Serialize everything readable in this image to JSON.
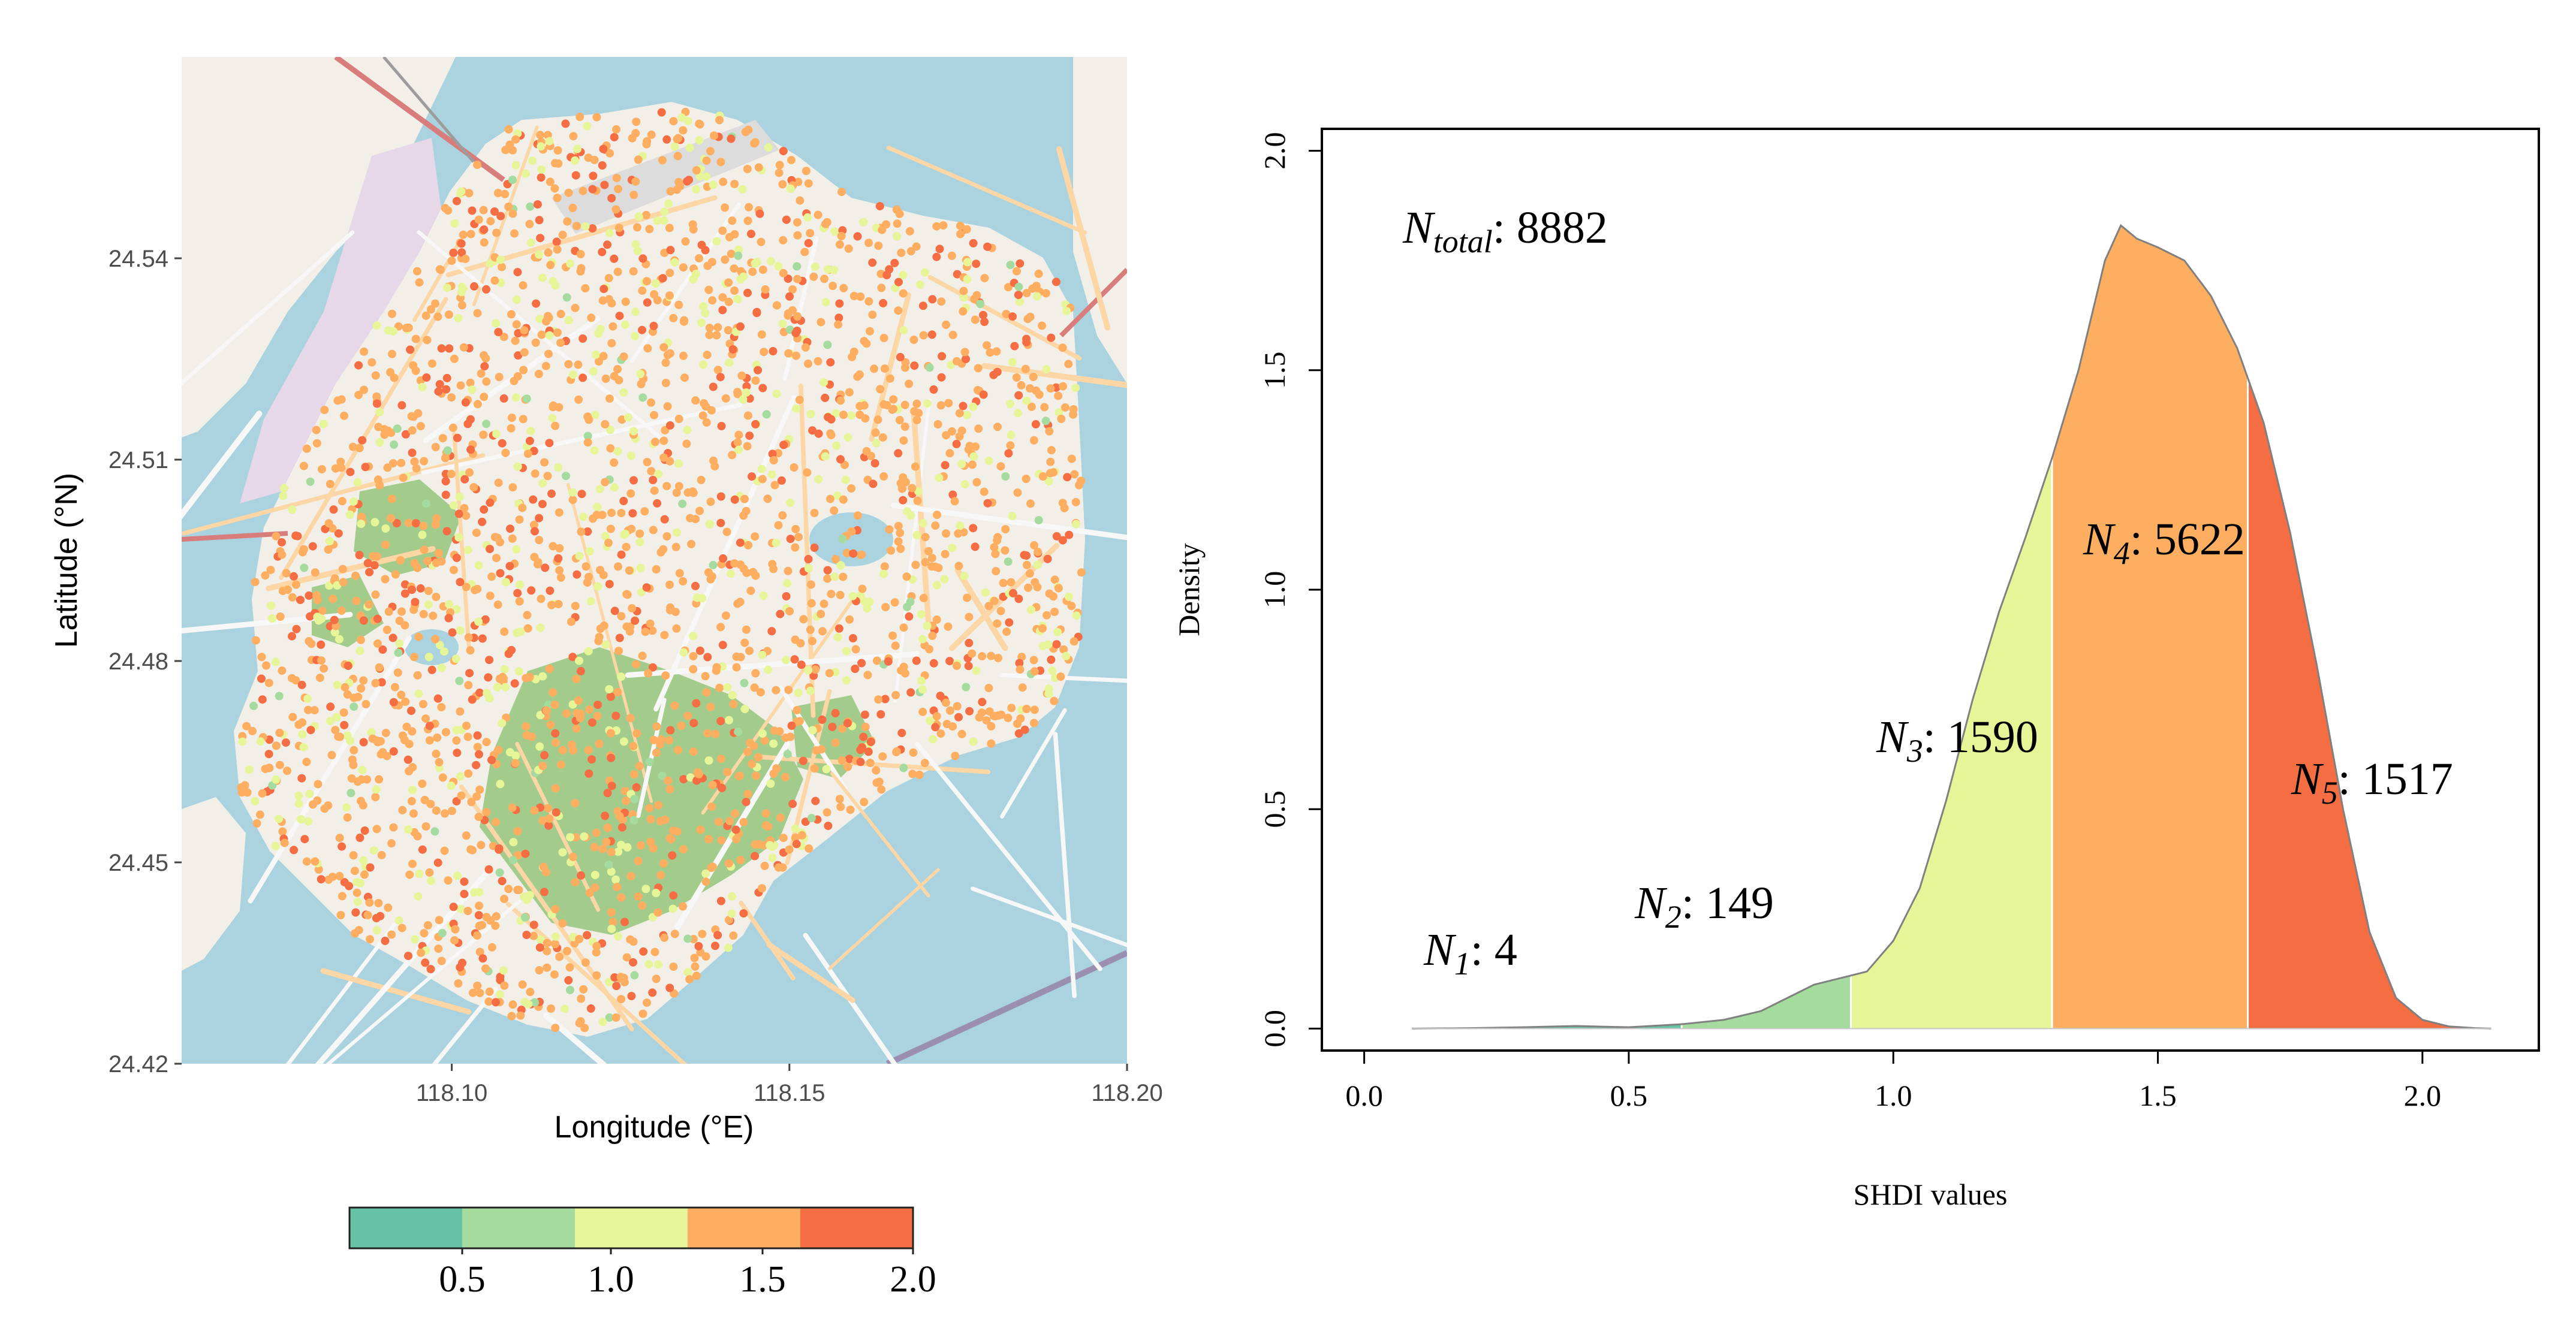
{
  "colors": {
    "c1": "#66c2a5",
    "c2": "#a6dba0",
    "c3": "#e6f598",
    "c4": "#fdae61",
    "c5": "#f46d43",
    "water": "#aad3df",
    "land": "#f2efe9",
    "park": "#a3cc8c",
    "outline": "#808080"
  },
  "chart_data": [
    {
      "type": "scatter",
      "xlabel": "Longitude (°E)",
      "ylabel": "Latitude (°N)",
      "xlim": [
        118.06,
        118.2
      ],
      "ylim": [
        24.42,
        24.57
      ],
      "xticks": [
        "118.10",
        "118.15",
        "118.20"
      ],
      "xtick_values": [
        118.1,
        118.15,
        118.2
      ],
      "yticks": [
        "24.42",
        "24.45",
        "24.48",
        "24.51",
        "24.54"
      ],
      "ytick_values": [
        24.42,
        24.45,
        24.48,
        24.51,
        24.54
      ],
      "legend": {
        "position": "bottom",
        "breaks": [
          0.2,
          0.6,
          0.9,
          1.3,
          1.67,
          2.02
        ],
        "labels": [
          "0.5",
          "1.0",
          "1.5",
          "2.0"
        ],
        "label_values": [
          0.5,
          1.0,
          1.5,
          2.0
        ]
      }
    },
    {
      "type": "area",
      "xlabel": "SHDI values",
      "ylabel": "Density",
      "xlim": [
        -0.08,
        2.22
      ],
      "ylim": [
        -0.05,
        2.05
      ],
      "xticks": [
        "0.0",
        "0.5",
        "1.0",
        "1.5",
        "2.0"
      ],
      "xtick_values": [
        0.0,
        0.5,
        1.0,
        1.5,
        2.0
      ],
      "yticks": [
        "0.0",
        "0.5",
        "1.0",
        "1.5",
        "2.0"
      ],
      "ytick_values": [
        0.0,
        0.5,
        1.0,
        1.5,
        2.0
      ],
      "x": [
        0.09,
        0.2,
        0.3,
        0.4,
        0.5,
        0.6,
        0.68,
        0.75,
        0.8,
        0.85,
        0.9,
        0.95,
        1.0,
        1.05,
        1.1,
        1.15,
        1.2,
        1.25,
        1.3,
        1.35,
        1.4,
        1.43,
        1.46,
        1.5,
        1.55,
        1.6,
        1.65,
        1.7,
        1.75,
        1.8,
        1.85,
        1.9,
        1.95,
        2.0,
        2.05,
        2.1,
        2.13
      ],
      "y": [
        0.0,
        0.001,
        0.003,
        0.006,
        0.003,
        0.01,
        0.02,
        0.04,
        0.07,
        0.1,
        0.115,
        0.13,
        0.2,
        0.32,
        0.52,
        0.75,
        0.95,
        1.12,
        1.3,
        1.5,
        1.75,
        1.83,
        1.8,
        1.78,
        1.75,
        1.67,
        1.55,
        1.38,
        1.13,
        0.83,
        0.5,
        0.22,
        0.07,
        0.02,
        0.005,
        0.001,
        0.0
      ],
      "bands": [
        {
          "from": 0.09,
          "to": 0.6
        },
        {
          "from": 0.6,
          "to": 0.92
        },
        {
          "from": 0.92,
          "to": 1.3
        },
        {
          "from": 1.3,
          "to": 1.67
        },
        {
          "from": 1.67,
          "to": 2.13
        }
      ],
      "annotations": {
        "total": {
          "base": "N",
          "sub": "total",
          "value": ": 8882"
        },
        "n1": {
          "base": "N",
          "sub": "1",
          "value": ": 4"
        },
        "n2": {
          "base": "N",
          "sub": "2",
          "value": ": 149"
        },
        "n3": {
          "base": "N",
          "sub": "3",
          "value": ": 1590"
        },
        "n4": {
          "base": "N",
          "sub": "4",
          "value": ": 5622"
        },
        "n5": {
          "base": "N",
          "sub": "5",
          "value": ": 1517"
        }
      }
    }
  ]
}
